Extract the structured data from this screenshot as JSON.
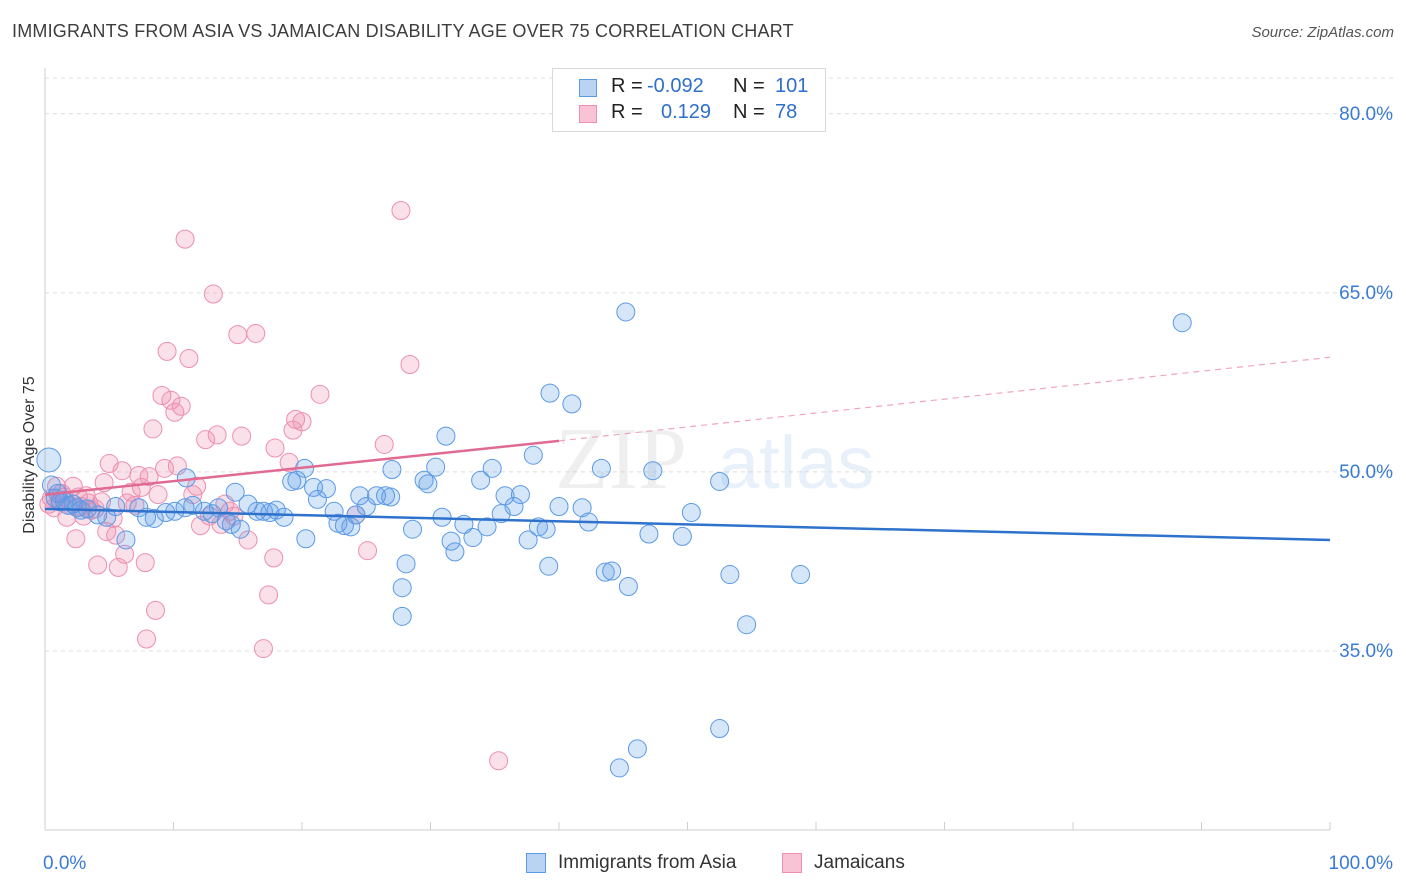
{
  "title": "IMMIGRANTS FROM ASIA VS JAMAICAN DISABILITY AGE OVER 75 CORRELATION CHART",
  "source": "Source: ZipAtlas.com",
  "watermark": {
    "zip": "ZIP",
    "atlas": "atlas"
  },
  "legend": {
    "rows": [
      {
        "r_label": "R =",
        "r_value": "-0.092",
        "n_label": "N =",
        "n_value": "101"
      },
      {
        "r_label": "R =",
        "r_value": "0.129",
        "n_label": "N =",
        "n_value": "78"
      }
    ]
  },
  "bottom_legend": {
    "series1": "Immigrants from Asia",
    "series2": "Jamaicans"
  },
  "colors": {
    "blue": "#5b9ae6",
    "blue_line": "#2f72cc",
    "pink": "#ee8fb0",
    "pink_line": "#e06a92",
    "tick_text": "#3a7bd5"
  },
  "chart_data": {
    "type": "scatter",
    "title": "IMMIGRANTS FROM ASIA VS JAMAICAN DISABILITY AGE OVER 75 CORRELATION CHART",
    "xlabel": "",
    "ylabel": "Disability Age Over 75",
    "xlim": [
      0,
      100
    ],
    "ylim": [
      20,
      83
    ],
    "x_tick_labels": [
      "0.0%",
      "100.0%"
    ],
    "y_ticks": [
      35,
      50,
      65,
      80
    ],
    "y_tick_labels": [
      "35.0%",
      "50.0%",
      "65.0%",
      "80.0%"
    ],
    "grid": true,
    "legend_position": "top-center",
    "series": [
      {
        "name": "Immigrants from Asia",
        "color": "#5b9ae6",
        "trend": {
          "x": [
            0,
            100
          ],
          "y": [
            46.9,
            44.3
          ],
          "style": "solid"
        },
        "points": [
          [
            0.3,
            51.0
          ],
          [
            0.5,
            48.9
          ],
          [
            0.8,
            47.8
          ],
          [
            1.0,
            48.2
          ],
          [
            1.2,
            47.5
          ],
          [
            1.5,
            47.6
          ],
          [
            1.8,
            47.2
          ],
          [
            2.2,
            47.3
          ],
          [
            2.5,
            47.0
          ],
          [
            2.8,
            46.8
          ],
          [
            3.3,
            46.9
          ],
          [
            4.1,
            46.4
          ],
          [
            4.8,
            46.2
          ],
          [
            5.5,
            47.1
          ],
          [
            6.3,
            44.3
          ],
          [
            7.3,
            47.0
          ],
          [
            7.9,
            46.2
          ],
          [
            8.5,
            46.1
          ],
          [
            9.4,
            46.6
          ],
          [
            10.1,
            46.7
          ],
          [
            10.9,
            47.0
          ],
          [
            11.0,
            49.5
          ],
          [
            11.5,
            47.2
          ],
          [
            12.4,
            46.7
          ],
          [
            13.0,
            46.5
          ],
          [
            13.5,
            47.0
          ],
          [
            14.1,
            45.9
          ],
          [
            14.5,
            45.6
          ],
          [
            14.8,
            48.3
          ],
          [
            15.2,
            45.2
          ],
          [
            15.8,
            47.3
          ],
          [
            16.5,
            46.7
          ],
          [
            17.0,
            46.7
          ],
          [
            17.5,
            46.6
          ],
          [
            18.0,
            46.8
          ],
          [
            18.6,
            46.2
          ],
          [
            19.2,
            49.2
          ],
          [
            19.6,
            49.3
          ],
          [
            20.2,
            50.3
          ],
          [
            20.3,
            44.4
          ],
          [
            20.9,
            48.7
          ],
          [
            21.2,
            47.7
          ],
          [
            21.9,
            48.6
          ],
          [
            22.5,
            46.7
          ],
          [
            22.8,
            45.7
          ],
          [
            23.3,
            45.5
          ],
          [
            23.8,
            45.4
          ],
          [
            24.2,
            46.4
          ],
          [
            24.5,
            48.0
          ],
          [
            25.0,
            47.1
          ],
          [
            25.8,
            48.0
          ],
          [
            26.5,
            48.0
          ],
          [
            26.9,
            47.9
          ],
          [
            27.0,
            50.2
          ],
          [
            27.8,
            40.3
          ],
          [
            27.8,
            37.9
          ],
          [
            28.1,
            42.3
          ],
          [
            28.6,
            45.2
          ],
          [
            29.5,
            49.3
          ],
          [
            29.8,
            49.0
          ],
          [
            30.4,
            50.4
          ],
          [
            30.9,
            46.2
          ],
          [
            31.6,
            44.2
          ],
          [
            31.9,
            43.3
          ],
          [
            31.2,
            53.0
          ],
          [
            32.6,
            45.6
          ],
          [
            33.3,
            44.5
          ],
          [
            33.9,
            49.3
          ],
          [
            34.4,
            45.4
          ],
          [
            34.8,
            50.3
          ],
          [
            35.5,
            46.5
          ],
          [
            35.8,
            48.0
          ],
          [
            36.5,
            47.1
          ],
          [
            37.0,
            48.1
          ],
          [
            37.6,
            44.3
          ],
          [
            38.0,
            51.4
          ],
          [
            38.4,
            45.4
          ],
          [
            39.0,
            45.2
          ],
          [
            39.2,
            42.1
          ],
          [
            39.3,
            56.6
          ],
          [
            40.0,
            47.1
          ],
          [
            41.0,
            55.7
          ],
          [
            41.8,
            47.0
          ],
          [
            42.3,
            45.8
          ],
          [
            43.3,
            50.3
          ],
          [
            43.6,
            41.6
          ],
          [
            44.1,
            41.7
          ],
          [
            44.7,
            25.2
          ],
          [
            45.2,
            63.4
          ],
          [
            45.4,
            40.4
          ],
          [
            46.1,
            26.8
          ],
          [
            47.0,
            44.8
          ],
          [
            47.3,
            50.1
          ],
          [
            50.3,
            46.6
          ],
          [
            52.5,
            49.2
          ],
          [
            52.5,
            28.5
          ],
          [
            53.3,
            41.4
          ],
          [
            54.6,
            37.2
          ],
          [
            58.8,
            41.4
          ],
          [
            88.5,
            62.5
          ],
          [
            49.6,
            44.6
          ]
        ]
      },
      {
        "name": "Jamaicans",
        "color": "#ee8fb0",
        "trend": {
          "x": [
            0,
            40
          ],
          "y": [
            48.1,
            52.6
          ],
          "style": "solid",
          "dashed_extension": {
            "x": [
              40,
              100
            ],
            "y": [
              52.6,
              59.6
            ]
          }
        },
        "points": [
          [
            0.3,
            47.3
          ],
          [
            0.5,
            47.8
          ],
          [
            0.7,
            47.0
          ],
          [
            0.9,
            48.8
          ],
          [
            1.1,
            47.5
          ],
          [
            1.3,
            48.2
          ],
          [
            1.5,
            47.9
          ],
          [
            1.7,
            46.2
          ],
          [
            2.0,
            47.2
          ],
          [
            2.2,
            48.8
          ],
          [
            2.4,
            44.4
          ],
          [
            2.6,
            47.9
          ],
          [
            2.8,
            47.1
          ],
          [
            3.0,
            46.3
          ],
          [
            3.2,
            48.0
          ],
          [
            3.4,
            47.4
          ],
          [
            3.6,
            46.8
          ],
          [
            3.9,
            46.9
          ],
          [
            4.1,
            42.2
          ],
          [
            4.4,
            47.5
          ],
          [
            4.6,
            49.1
          ],
          [
            4.8,
            45.0
          ],
          [
            5.0,
            50.7
          ],
          [
            5.3,
            46.1
          ],
          [
            5.5,
            44.7
          ],
          [
            5.7,
            42.0
          ],
          [
            6.0,
            50.1
          ],
          [
            6.2,
            43.1
          ],
          [
            6.4,
            47.4
          ],
          [
            6.7,
            48.3
          ],
          [
            7.0,
            47.2
          ],
          [
            7.3,
            49.7
          ],
          [
            7.5,
            48.7
          ],
          [
            7.8,
            42.4
          ],
          [
            7.9,
            36.0
          ],
          [
            8.1,
            49.6
          ],
          [
            8.4,
            53.6
          ],
          [
            8.6,
            38.4
          ],
          [
            8.8,
            48.1
          ],
          [
            9.1,
            56.4
          ],
          [
            9.3,
            50.3
          ],
          [
            9.5,
            60.1
          ],
          [
            9.8,
            56.0
          ],
          [
            10.1,
            55.0
          ],
          [
            10.3,
            50.5
          ],
          [
            10.6,
            55.5
          ],
          [
            10.9,
            69.5
          ],
          [
            11.2,
            59.5
          ],
          [
            11.5,
            48.1
          ],
          [
            11.8,
            48.8
          ],
          [
            12.1,
            45.5
          ],
          [
            12.5,
            52.7
          ],
          [
            12.8,
            46.3
          ],
          [
            13.1,
            64.9
          ],
          [
            13.4,
            53.1
          ],
          [
            13.7,
            45.6
          ],
          [
            14.0,
            47.3
          ],
          [
            14.4,
            46.7
          ],
          [
            14.7,
            46.3
          ],
          [
            15.0,
            61.5
          ],
          [
            15.3,
            53.0
          ],
          [
            15.8,
            44.3
          ],
          [
            16.4,
            61.6
          ],
          [
            17.0,
            35.2
          ],
          [
            17.4,
            39.7
          ],
          [
            17.8,
            42.8
          ],
          [
            17.9,
            52.0
          ],
          [
            19.0,
            50.8
          ],
          [
            19.3,
            53.5
          ],
          [
            19.5,
            54.4
          ],
          [
            20.0,
            54.2
          ],
          [
            21.4,
            56.5
          ],
          [
            24.2,
            46.4
          ],
          [
            25.1,
            43.4
          ],
          [
            26.4,
            52.3
          ],
          [
            27.7,
            71.9
          ],
          [
            28.4,
            59.0
          ],
          [
            35.3,
            25.8
          ]
        ]
      }
    ]
  }
}
